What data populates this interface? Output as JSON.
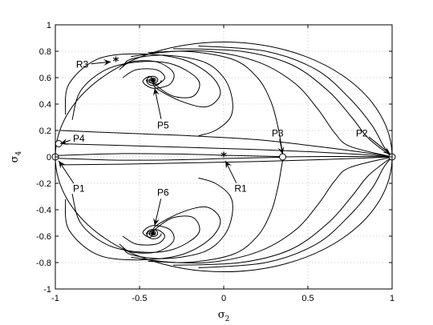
{
  "chart_data": {
    "type": "line",
    "title": "",
    "xlabel": {
      "base": "σ",
      "sub": "2"
    },
    "ylabel": {
      "base": "σ",
      "sub": "4"
    },
    "xlim": [
      -1,
      1
    ],
    "ylim": [
      -1,
      1
    ],
    "xticks": [
      -1,
      -0.5,
      0,
      0.5,
      1
    ],
    "xtick_labels": [
      "-1",
      "-0.5",
      "0",
      "0.5",
      "1"
    ],
    "yticks": [
      -1,
      -0.8,
      -0.6,
      -0.4,
      -0.2,
      0,
      0.2,
      0.4,
      0.6,
      0.8,
      1
    ],
    "ytick_labels": [
      "-1",
      "-0.8",
      "-0.6",
      "-0.4",
      "-0.2",
      "0",
      "0.2",
      "0.4",
      "0.6",
      "0.8",
      "1"
    ],
    "grid": true,
    "fixed_points": [
      {
        "label": "P1",
        "x": -1,
        "y": 0
      },
      {
        "label": "P2",
        "x": 1,
        "y": 0
      },
      {
        "label": "P3",
        "x": 0.35,
        "y": 0
      },
      {
        "label": "P4",
        "x": -0.98,
        "y": 0.1
      }
    ],
    "spiral_points": [
      {
        "label": "P5",
        "x": -0.42,
        "y": 0.58
      },
      {
        "label": "P6",
        "x": -0.42,
        "y": -0.58
      }
    ],
    "star_points": [
      {
        "label": "R1",
        "x": 0,
        "y": 0.01
      },
      {
        "label": "R3",
        "x": -0.64,
        "y": 0.73
      }
    ],
    "annotations": [
      {
        "text": "R3",
        "text_x": -0.84,
        "text_y": 0.7,
        "target_x": -0.67,
        "target_y": 0.72
      },
      {
        "text": "P4",
        "text_x": -0.86,
        "text_y": 0.14,
        "target_x": -0.97,
        "target_y": 0.1
      },
      {
        "text": "P5",
        "text_x": -0.36,
        "text_y": 0.24,
        "target_x": -0.41,
        "target_y": 0.52
      },
      {
        "text": "P3",
        "text_x": 0.32,
        "text_y": 0.18,
        "target_x": 0.35,
        "target_y": 0.02
      },
      {
        "text": "P2",
        "text_x": 0.82,
        "text_y": 0.18,
        "target_x": 0.99,
        "target_y": 0.02
      },
      {
        "text": "P1",
        "text_x": -0.86,
        "text_y": -0.24,
        "target_x": -0.98,
        "target_y": -0.03
      },
      {
        "text": "R1",
        "text_x": 0.1,
        "text_y": -0.24,
        "target_x": 0.01,
        "target_y": -0.03
      },
      {
        "text": "P6",
        "text_x": -0.36,
        "text_y": -0.27,
        "target_x": -0.41,
        "target_y": -0.52
      }
    ],
    "envelope": {
      "type": "ellipse",
      "center": [
        0,
        0
      ],
      "rx": 1,
      "ry": 0.87
    },
    "trajectories": [
      [
        [
          -1,
          0.01
        ],
        [
          -0.6,
          0.025
        ],
        [
          -0.2,
          0.02
        ],
        [
          0,
          0.012
        ],
        [
          0.3,
          0.004
        ],
        [
          0.35,
          0
        ]
      ],
      [
        [
          -1,
          -0.01
        ],
        [
          -0.6,
          -0.025
        ],
        [
          -0.2,
          -0.02
        ],
        [
          0,
          -0.012
        ],
        [
          0.3,
          -0.004
        ],
        [
          0.35,
          0
        ]
      ],
      [
        [
          0.35,
          0
        ],
        [
          0.6,
          0.003
        ],
        [
          0.85,
          0.002
        ],
        [
          1,
          0
        ]
      ],
      [
        [
          -0.98,
          0.1
        ],
        [
          -0.7,
          0.09
        ],
        [
          -0.3,
          0.075
        ],
        [
          0.1,
          0.06
        ],
        [
          0.5,
          0.04
        ],
        [
          0.8,
          0.02
        ],
        [
          1,
          0
        ]
      ],
      [
        [
          -0.97,
          0.2
        ],
        [
          -0.6,
          0.18
        ],
        [
          -0.2,
          0.16
        ],
        [
          0.2,
          0.13
        ],
        [
          0.55,
          0.08
        ],
        [
          0.85,
          0.03
        ],
        [
          1,
          0
        ]
      ],
      [
        [
          -0.96,
          -0.06
        ],
        [
          -0.6,
          -0.055
        ],
        [
          -0.2,
          -0.045
        ],
        [
          0.2,
          -0.035
        ],
        [
          0.6,
          -0.02
        ],
        [
          1,
          0
        ]
      ],
      [
        [
          -0.94,
          0.32
        ],
        [
          -0.92,
          0.55
        ],
        [
          -0.75,
          0.74
        ],
        [
          -0.5,
          0.78
        ],
        [
          -0.25,
          0.74
        ],
        [
          -0.08,
          0.62
        ],
        [
          -0.02,
          0.48
        ],
        [
          -0.1,
          0.38
        ],
        [
          -0.25,
          0.42
        ],
        [
          -0.4,
          0.52
        ],
        [
          -0.42,
          0.58
        ]
      ],
      [
        [
          -0.9,
          0.28
        ],
        [
          -0.85,
          0.5
        ],
        [
          -0.7,
          0.66
        ],
        [
          -0.5,
          0.72
        ],
        [
          -0.3,
          0.7
        ],
        [
          -0.15,
          0.58
        ],
        [
          -0.18,
          0.46
        ],
        [
          -0.3,
          0.46
        ],
        [
          -0.4,
          0.54
        ],
        [
          -0.42,
          0.58
        ]
      ],
      [
        [
          -0.62,
          0.66
        ],
        [
          -0.55,
          0.72
        ],
        [
          -0.4,
          0.72
        ],
        [
          -0.3,
          0.64
        ],
        [
          -0.32,
          0.55
        ],
        [
          -0.42,
          0.52
        ],
        [
          -0.48,
          0.57
        ],
        [
          -0.44,
          0.61
        ],
        [
          -0.42,
          0.58
        ]
      ],
      [
        [
          -0.6,
          0.6
        ],
        [
          -0.52,
          0.66
        ],
        [
          -0.4,
          0.66
        ],
        [
          -0.35,
          0.6
        ],
        [
          -0.4,
          0.55
        ],
        [
          -0.46,
          0.58
        ],
        [
          -0.42,
          0.58
        ]
      ],
      [
        [
          -0.6,
          0.68
        ],
        [
          -0.55,
          0.74
        ],
        [
          -0.35,
          0.77
        ],
        [
          -0.12,
          0.72
        ],
        [
          0.0,
          0.6
        ],
        [
          0.05,
          0.44
        ],
        [
          0.04,
          0.3
        ],
        [
          -0.05,
          0.2
        ],
        [
          -0.15,
          0.16
        ]
      ],
      [
        [
          -0.55,
          0.76
        ],
        [
          -0.25,
          0.8
        ],
        [
          0.05,
          0.74
        ],
        [
          0.2,
          0.6
        ],
        [
          0.28,
          0.42
        ],
        [
          0.32,
          0.24
        ],
        [
          0.34,
          0.1
        ],
        [
          0.35,
          0.02
        ],
        [
          0.35,
          0
        ]
      ],
      [
        [
          -0.45,
          0.79
        ],
        [
          -0.1,
          0.8
        ],
        [
          0.2,
          0.72
        ],
        [
          0.42,
          0.56
        ],
        [
          0.56,
          0.36
        ],
        [
          0.66,
          0.18
        ],
        [
          0.75,
          0.08
        ],
        [
          1,
          0
        ]
      ],
      [
        [
          -0.3,
          0.82
        ],
        [
          0.1,
          0.8
        ],
        [
          0.4,
          0.7
        ],
        [
          0.62,
          0.5
        ],
        [
          0.76,
          0.3
        ],
        [
          0.86,
          0.14
        ],
        [
          1,
          0
        ]
      ],
      [
        [
          -0.15,
          0.84
        ],
        [
          0.25,
          0.8
        ],
        [
          0.55,
          0.66
        ],
        [
          0.75,
          0.44
        ],
        [
          0.88,
          0.24
        ],
        [
          0.95,
          0.08
        ],
        [
          1,
          0
        ]
      ],
      [
        [
          -0.94,
          -0.32
        ],
        [
          -0.92,
          -0.55
        ],
        [
          -0.75,
          -0.74
        ],
        [
          -0.5,
          -0.78
        ],
        [
          -0.25,
          -0.74
        ],
        [
          -0.08,
          -0.62
        ],
        [
          -0.02,
          -0.48
        ],
        [
          -0.1,
          -0.38
        ],
        [
          -0.25,
          -0.42
        ],
        [
          -0.4,
          -0.52
        ],
        [
          -0.42,
          -0.58
        ]
      ],
      [
        [
          -0.9,
          -0.28
        ],
        [
          -0.85,
          -0.5
        ],
        [
          -0.7,
          -0.66
        ],
        [
          -0.5,
          -0.72
        ],
        [
          -0.3,
          -0.7
        ],
        [
          -0.15,
          -0.58
        ],
        [
          -0.18,
          -0.46
        ],
        [
          -0.3,
          -0.46
        ],
        [
          -0.4,
          -0.54
        ],
        [
          -0.42,
          -0.58
        ]
      ],
      [
        [
          -0.62,
          -0.66
        ],
        [
          -0.55,
          -0.72
        ],
        [
          -0.4,
          -0.72
        ],
        [
          -0.3,
          -0.64
        ],
        [
          -0.32,
          -0.55
        ],
        [
          -0.42,
          -0.52
        ],
        [
          -0.48,
          -0.57
        ],
        [
          -0.44,
          -0.61
        ],
        [
          -0.42,
          -0.58
        ]
      ],
      [
        [
          -0.6,
          -0.6
        ],
        [
          -0.52,
          -0.66
        ],
        [
          -0.4,
          -0.66
        ],
        [
          -0.35,
          -0.6
        ],
        [
          -0.4,
          -0.55
        ],
        [
          -0.46,
          -0.58
        ],
        [
          -0.42,
          -0.58
        ]
      ],
      [
        [
          -0.6,
          -0.68
        ],
        [
          -0.55,
          -0.74
        ],
        [
          -0.35,
          -0.77
        ],
        [
          -0.12,
          -0.72
        ],
        [
          0.0,
          -0.6
        ],
        [
          0.05,
          -0.44
        ],
        [
          0.04,
          -0.3
        ],
        [
          -0.05,
          -0.2
        ],
        [
          -0.15,
          -0.16
        ]
      ],
      [
        [
          -0.55,
          -0.76
        ],
        [
          -0.25,
          -0.8
        ],
        [
          0.05,
          -0.74
        ],
        [
          0.2,
          -0.6
        ],
        [
          0.28,
          -0.42
        ],
        [
          0.32,
          -0.24
        ],
        [
          0.34,
          -0.1
        ],
        [
          0.35,
          -0.02
        ],
        [
          0.35,
          0
        ]
      ],
      [
        [
          -0.45,
          -0.79
        ],
        [
          -0.1,
          -0.8
        ],
        [
          0.2,
          -0.72
        ],
        [
          0.42,
          -0.56
        ],
        [
          0.56,
          -0.36
        ],
        [
          0.66,
          -0.18
        ],
        [
          0.75,
          -0.08
        ],
        [
          1,
          0
        ]
      ],
      [
        [
          -0.3,
          -0.82
        ],
        [
          0.1,
          -0.8
        ],
        [
          0.4,
          -0.7
        ],
        [
          0.62,
          -0.5
        ],
        [
          0.76,
          -0.3
        ],
        [
          0.86,
          -0.14
        ],
        [
          1,
          0
        ]
      ],
      [
        [
          -0.15,
          -0.84
        ],
        [
          0.25,
          -0.8
        ],
        [
          0.55,
          -0.66
        ],
        [
          0.75,
          -0.44
        ],
        [
          0.88,
          -0.24
        ],
        [
          0.95,
          -0.08
        ],
        [
          1,
          0
        ]
      ]
    ]
  }
}
